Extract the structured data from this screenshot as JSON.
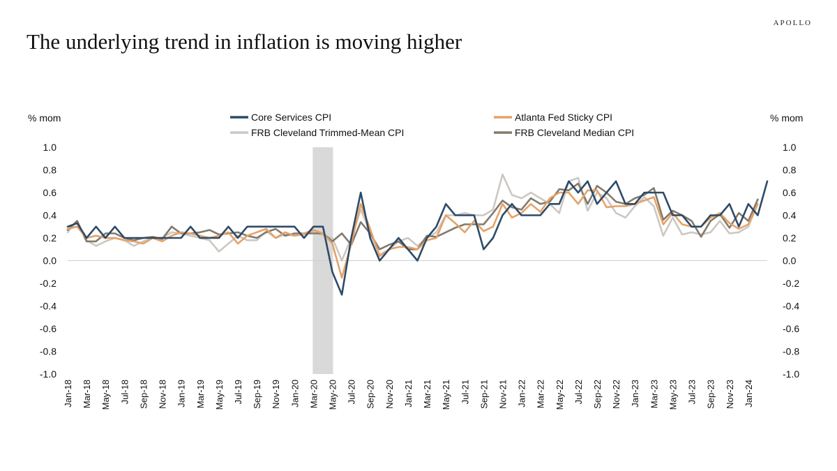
{
  "brand": "APOLLO",
  "title": "The underlying trend in inflation is moving higher",
  "colors": {
    "core_services": "#2e4a67",
    "atlanta_sticky": "#e5a268",
    "trimmed_mean": "#cbc8c3",
    "median": "#827a6c",
    "recession_band": "#d9d9d9"
  },
  "chart_data": {
    "type": "line",
    "title": "The underlying trend in inflation is moving higher",
    "ylabel_left": "% mom",
    "ylabel_right": "% mom",
    "ylim": [
      -1.0,
      1.0
    ],
    "yticks": [
      "1.0",
      "0.8",
      "0.6",
      "0.4",
      "0.2",
      "0.0",
      "-0.2",
      "-0.4",
      "-0.6",
      "-0.8",
      "-1.0"
    ],
    "ytick_values": [
      1.0,
      0.8,
      0.6,
      0.4,
      0.2,
      0.0,
      -0.2,
      -0.4,
      -0.6,
      -0.8,
      -1.0
    ],
    "x_start": "Jan-18",
    "x_ticks": [
      "Jan-18",
      "Mar-18",
      "May-18",
      "Jul-18",
      "Sep-18",
      "Nov-18",
      "Jan-19",
      "Mar-19",
      "May-19",
      "Jul-19",
      "Sep-19",
      "Nov-19",
      "Jan-20",
      "Mar-20",
      "May-20",
      "Jul-20",
      "Sep-20",
      "Nov-20",
      "Jan-21",
      "Mar-21",
      "May-21",
      "Jul-21",
      "Sep-21",
      "Nov-21",
      "Jan-22",
      "Mar-22",
      "May-22",
      "Jul-22",
      "Sep-22",
      "Nov-22",
      "Jan-23",
      "Mar-23",
      "May-23",
      "Jul-23",
      "Sep-23",
      "Nov-23",
      "Jan-24"
    ],
    "shaded_region": {
      "start_index": 26,
      "end_index": 28
    },
    "legend": {
      "row1": [
        "Core Services CPI",
        "Atlanta Fed Sticky CPI"
      ],
      "row2": [
        "FRB Cleveland Trimmed-Mean CPI",
        "FRB Cleveland Median CPI"
      ]
    },
    "series": [
      {
        "name": "Core Services CPI",
        "color": "#2e4a67",
        "values": [
          0.3,
          0.33,
          0.2,
          0.3,
          0.2,
          0.3,
          0.2,
          0.2,
          0.2,
          0.2,
          0.2,
          0.2,
          0.2,
          0.3,
          0.2,
          0.2,
          0.2,
          0.3,
          0.2,
          0.3,
          0.3,
          0.3,
          0.3,
          0.3,
          0.3,
          0.2,
          0.3,
          0.3,
          -0.1,
          -0.3,
          0.2,
          0.6,
          0.2,
          0.0,
          0.1,
          0.2,
          0.1,
          0.0,
          0.2,
          0.3,
          0.5,
          0.4,
          0.4,
          0.4,
          0.1,
          0.2,
          0.4,
          0.5,
          0.4,
          0.4,
          0.4,
          0.5,
          0.5,
          0.7,
          0.6,
          0.7,
          0.5,
          0.6,
          0.7,
          0.5,
          0.5,
          0.6,
          0.6,
          0.6,
          0.4,
          0.4,
          0.3,
          0.3,
          0.4,
          0.4,
          0.5,
          0.3,
          0.5,
          0.4,
          0.7
        ]
      },
      {
        "name": "Atlanta Fed Sticky CPI",
        "color": "#e5a268",
        "values": [
          0.28,
          0.3,
          0.2,
          0.22,
          0.2,
          0.2,
          0.18,
          0.17,
          0.15,
          0.2,
          0.17,
          0.22,
          0.25,
          0.24,
          0.22,
          0.2,
          0.22,
          0.25,
          0.15,
          0.22,
          0.25,
          0.28,
          0.2,
          0.25,
          0.22,
          0.24,
          0.27,
          0.24,
          0.15,
          -0.15,
          0.15,
          0.5,
          0.28,
          0.04,
          0.1,
          0.12,
          0.12,
          0.1,
          0.18,
          0.2,
          0.4,
          0.33,
          0.25,
          0.35,
          0.26,
          0.3,
          0.5,
          0.38,
          0.42,
          0.5,
          0.43,
          0.55,
          0.6,
          0.6,
          0.5,
          0.62,
          0.62,
          0.47,
          0.48,
          0.48,
          0.5,
          0.53,
          0.56,
          0.32,
          0.42,
          0.32,
          0.3,
          0.3,
          0.38,
          0.42,
          0.33,
          0.28,
          0.32,
          0.5
        ]
      },
      {
        "name": "FRB Cleveland Trimmed-Mean CPI",
        "color": "#cbc8c3",
        "values": [
          0.25,
          0.35,
          0.18,
          0.13,
          0.17,
          0.2,
          0.18,
          0.13,
          0.17,
          0.2,
          0.2,
          0.25,
          0.24,
          0.22,
          0.2,
          0.18,
          0.08,
          0.15,
          0.22,
          0.18,
          0.18,
          0.26,
          0.2,
          0.23,
          0.22,
          0.23,
          0.26,
          0.22,
          0.2,
          0.0,
          0.2,
          0.45,
          0.25,
          0.05,
          0.1,
          0.17,
          0.2,
          0.13,
          0.2,
          0.25,
          0.4,
          0.4,
          0.42,
          0.4,
          0.4,
          0.45,
          0.76,
          0.58,
          0.55,
          0.6,
          0.55,
          0.5,
          0.42,
          0.7,
          0.73,
          0.44,
          0.6,
          0.55,
          0.42,
          0.38,
          0.48,
          0.56,
          0.48,
          0.22,
          0.38,
          0.23,
          0.25,
          0.23,
          0.25,
          0.35,
          0.24,
          0.25,
          0.3,
          0.5
        ]
      },
      {
        "name": "FRB Cleveland Median CPI",
        "color": "#827a6c",
        "values": [
          0.27,
          0.35,
          0.17,
          0.17,
          0.24,
          0.24,
          0.2,
          0.18,
          0.2,
          0.21,
          0.19,
          0.3,
          0.24,
          0.24,
          0.25,
          0.27,
          0.23,
          0.24,
          0.25,
          0.22,
          0.2,
          0.25,
          0.28,
          0.22,
          0.24,
          0.24,
          0.24,
          0.24,
          0.17,
          0.24,
          0.14,
          0.34,
          0.24,
          0.1,
          0.14,
          0.17,
          0.1,
          0.1,
          0.22,
          0.21,
          0.25,
          0.29,
          0.32,
          0.32,
          0.32,
          0.42,
          0.53,
          0.47,
          0.45,
          0.55,
          0.5,
          0.52,
          0.63,
          0.62,
          0.68,
          0.5,
          0.66,
          0.6,
          0.52,
          0.5,
          0.55,
          0.58,
          0.64,
          0.36,
          0.44,
          0.4,
          0.35,
          0.21,
          0.35,
          0.41,
          0.29,
          0.42,
          0.35,
          0.54
        ]
      }
    ]
  }
}
